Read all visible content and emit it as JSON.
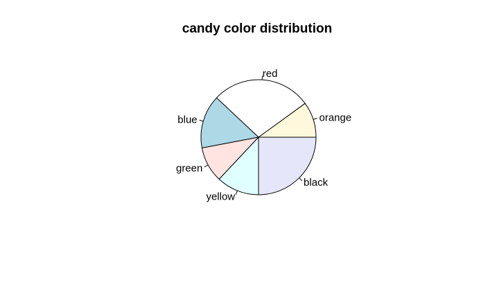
{
  "chart_data": {
    "type": "pie",
    "title": "candy color distribution",
    "slices": [
      {
        "label": "orange",
        "value": 0.1,
        "color": "#FFF8DC"
      },
      {
        "label": "red",
        "value": 0.28,
        "color": "#FFFFFF"
      },
      {
        "label": "blue",
        "value": 0.15,
        "color": "#ADD8E6"
      },
      {
        "label": "green",
        "value": 0.1,
        "color": "#FFE4E1"
      },
      {
        "label": "yellow",
        "value": 0.12,
        "color": "#E0FFFF"
      },
      {
        "label": "black",
        "value": 0.25,
        "color": "#E6E6FA"
      }
    ],
    "start_angle_deg": 0,
    "direction": "counterclockwise"
  }
}
